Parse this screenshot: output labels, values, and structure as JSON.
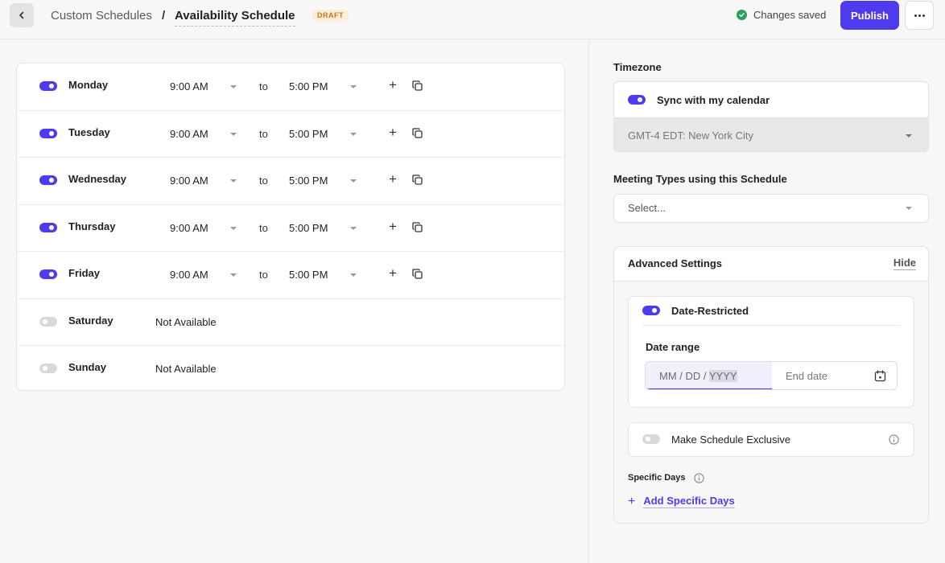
{
  "header": {
    "breadcrumb_parent": "Custom Schedules",
    "breadcrumb_separator": "/",
    "title": "Availability Schedule",
    "status_badge": "DRAFT",
    "saved_text": "Changes saved",
    "publish_label": "Publish"
  },
  "days": [
    {
      "name": "Monday",
      "enabled": true,
      "start": "9:00 AM",
      "to": "to",
      "end": "5:00 PM"
    },
    {
      "name": "Tuesday",
      "enabled": true,
      "start": "9:00 AM",
      "to": "to",
      "end": "5:00 PM"
    },
    {
      "name": "Wednesday",
      "enabled": true,
      "start": "9:00 AM",
      "to": "to",
      "end": "5:00 PM"
    },
    {
      "name": "Thursday",
      "enabled": true,
      "start": "9:00 AM",
      "to": "to",
      "end": "5:00 PM"
    },
    {
      "name": "Friday",
      "enabled": true,
      "start": "9:00 AM",
      "to": "to",
      "end": "5:00 PM"
    },
    {
      "name": "Saturday",
      "enabled": false,
      "status": "Not Available"
    },
    {
      "name": "Sunday",
      "enabled": false,
      "status": "Not Available"
    }
  ],
  "timezone": {
    "label": "Timezone",
    "sync_label": "Sync with my calendar",
    "sync_enabled": true,
    "value": "GMT-4  EDT: New York City"
  },
  "meeting_types": {
    "label": "Meeting Types using this Schedule",
    "placeholder": "Select..."
  },
  "advanced": {
    "title": "Advanced Settings",
    "hide_label": "Hide",
    "date_restricted": {
      "label": "Date-Restricted",
      "enabled": true,
      "range_label": "Date range",
      "start_placeholder_prefix": "MM / DD / ",
      "start_placeholder_year": "YYYY",
      "end_placeholder": "End date"
    },
    "exclusive": {
      "label": "Make Schedule Exclusive",
      "enabled": false
    },
    "specific_days": {
      "label": "Specific Days",
      "add_label": "Add Specific Days"
    }
  },
  "colors": {
    "accent": "#4f3bef",
    "saved_green": "#2e9e5e",
    "draft_bg": "#fdeed9",
    "draft_text": "#c4791e"
  }
}
